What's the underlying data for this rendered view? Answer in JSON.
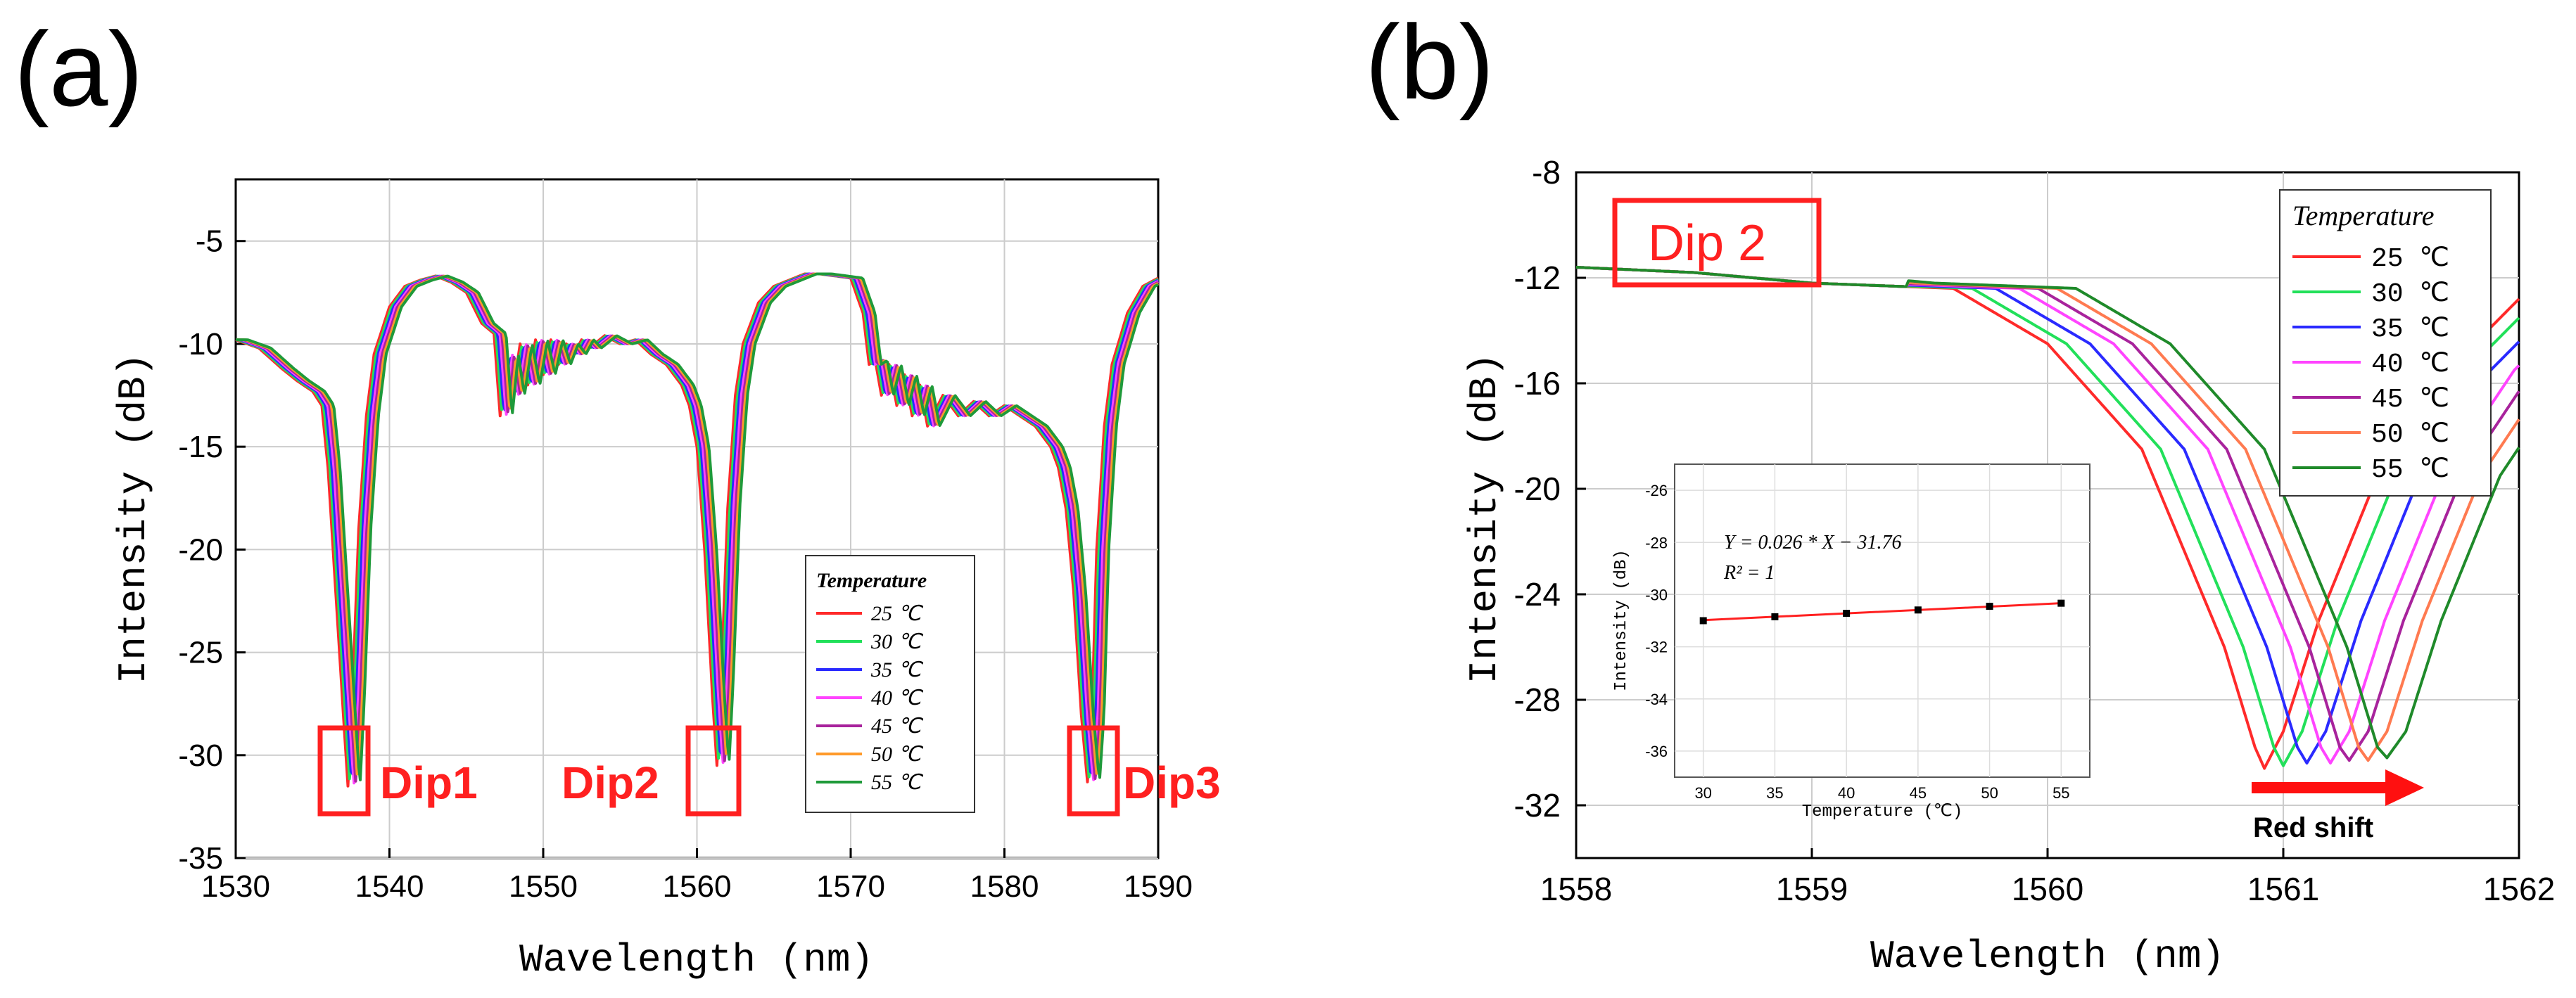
{
  "figure": {
    "panel_a_label": "(a)",
    "panel_b_label": "(b)"
  },
  "chart_data": [
    {
      "type": "line",
      "panel": "(a)",
      "xlabel": "Wavelength (nm)",
      "ylabel": "Intensity (dB)",
      "xlim": [
        1530,
        1590
      ],
      "ylim": [
        -35,
        -2
      ],
      "xticks": [
        1530,
        1540,
        1550,
        1560,
        1570,
        1580,
        1590
      ],
      "yticks": [
        -5,
        -10,
        -15,
        -20,
        -25,
        -30,
        -35
      ],
      "grid": true,
      "legend": {
        "title": "Temperature",
        "position": "lower-right",
        "entries": [
          "25 ℃",
          "30 ℃",
          "35 ℃",
          "40 ℃",
          "45 ℃",
          "50 ℃",
          "55 ℃"
        ]
      },
      "series": [
        {
          "name": "25 ℃",
          "color": "#ff2a2a",
          "shift": 0.0
        },
        {
          "name": "30 ℃",
          "color": "#22e05a",
          "shift": 0.13
        },
        {
          "name": "35 ℃",
          "color": "#2a2aff",
          "shift": 0.26
        },
        {
          "name": "40 ℃",
          "color": "#ff44ff",
          "shift": 0.39
        },
        {
          "name": "45 ℃",
          "color": "#a8239c",
          "shift": 0.52
        },
        {
          "name": "50 ℃",
          "color": "#ff9a2a",
          "shift": 0.65
        },
        {
          "name": "55 ℃",
          "color": "#1f9a3a",
          "shift": 0.78
        }
      ],
      "x": [
        1530,
        1531.5,
        1533,
        1534,
        1535,
        1535.6,
        1536,
        1536.5,
        1537,
        1537.3,
        1537.6,
        1538,
        1538.5,
        1539,
        1540,
        1541,
        1542,
        1543,
        1544,
        1545,
        1546,
        1546.8,
        1547.2,
        1547.6,
        1548,
        1548.5,
        1549,
        1549.5,
        1550,
        1550.5,
        1551,
        1551.5,
        1552,
        1552.5,
        1553,
        1554,
        1555,
        1556,
        1557,
        1558,
        1559,
        1559.5,
        1560,
        1560.5,
        1561,
        1561.3,
        1561.6,
        1562,
        1562.5,
        1563,
        1564,
        1565,
        1566,
        1567,
        1568,
        1569,
        1570,
        1570.8,
        1571.2,
        1571.6,
        1572,
        1572.5,
        1573,
        1573.5,
        1574,
        1574.5,
        1575,
        1576,
        1577,
        1578,
        1579,
        1580,
        1581,
        1582,
        1583,
        1583.5,
        1584,
        1584.5,
        1585,
        1585.4,
        1585.7,
        1586,
        1586.5,
        1587,
        1588,
        1589,
        1590
      ],
      "values": [
        -9.8,
        -10.2,
        -11.2,
        -11.8,
        -12.3,
        -13,
        -16,
        -22,
        -28,
        -31.5,
        -27,
        -19,
        -13.5,
        -10.5,
        -8.2,
        -7.2,
        -6.9,
        -6.7,
        -7,
        -7.5,
        -9,
        -9.5,
        -13.5,
        -10.5,
        -12.5,
        -10,
        -12,
        -9.8,
        -11.5,
        -9.8,
        -11,
        -10,
        -10.5,
        -9.8,
        -10.2,
        -9.6,
        -10,
        -9.8,
        -10.5,
        -11,
        -12,
        -13,
        -15,
        -20,
        -27,
        -30.5,
        -26,
        -18,
        -12.5,
        -10,
        -8,
        -7.2,
        -6.9,
        -6.6,
        -6.6,
        -6.7,
        -6.8,
        -8.5,
        -11,
        -10.8,
        -12.5,
        -11,
        -13,
        -11.5,
        -13.5,
        -12,
        -14,
        -12.5,
        -13.5,
        -12.8,
        -13.5,
        -13,
        -13.5,
        -14,
        -15,
        -16,
        -18,
        -22,
        -28,
        -31.3,
        -28,
        -20,
        -14,
        -11,
        -8.5,
        -7.2,
        -6.8
      ]
    },
    {
      "type": "line",
      "panel": "(b)",
      "xlabel": "Wavelength (nm)",
      "ylabel": "Intensity (dB)",
      "xlim": [
        1558,
        1562
      ],
      "ylim": [
        -34,
        -8
      ],
      "xticks": [
        1558,
        1559,
        1560,
        1561,
        1562
      ],
      "yticks": [
        -8,
        -12,
        -16,
        -20,
        -24,
        -28,
        -32
      ],
      "grid": true,
      "annotations": [
        {
          "text": "Dip 2"
        },
        {
          "text": "Red shift"
        }
      ],
      "legend": {
        "title": "Temperature",
        "position": "top-right",
        "entries": [
          "25 ℃",
          "30 ℃",
          "35 ℃",
          "40 ℃",
          "45 ℃",
          "50 ℃",
          "55 ℃"
        ]
      },
      "series": [
        {
          "name": "25 ℃",
          "color": "#ff2a2a",
          "dip_x": 1560.92,
          "dip_y": -30.6
        },
        {
          "name": "30 ℃",
          "color": "#22e05a",
          "dip_x": 1561.0,
          "dip_y": -30.5
        },
        {
          "name": "35 ℃",
          "color": "#2a2aff",
          "dip_x": 1561.1,
          "dip_y": -30.4
        },
        {
          "name": "40 ℃",
          "color": "#ff44ff",
          "dip_x": 1561.2,
          "dip_y": -30.4
        },
        {
          "name": "45 ℃",
          "color": "#a8239c",
          "dip_x": 1561.28,
          "dip_y": -30.3
        },
        {
          "name": "50 ℃",
          "color": "#ff7a50",
          "dip_x": 1561.36,
          "dip_y": -30.3
        },
        {
          "name": "55 ℃",
          "color": "#1f8a2a",
          "dip_x": 1561.44,
          "dip_y": -30.2
        }
      ],
      "inset": {
        "type": "scatter",
        "xlabel": "Temperature (℃)",
        "ylabel": "Intensity (dB)",
        "xlim": [
          28,
          57
        ],
        "ylim": [
          -37,
          -25
        ],
        "xticks": [
          30,
          35,
          40,
          45,
          50,
          55
        ],
        "yticks": [
          -26,
          -28,
          -30,
          -32,
          -34,
          -36
        ],
        "x": [
          30,
          35,
          40,
          45,
          50,
          55
        ],
        "y": [
          -31.0,
          -30.85,
          -30.72,
          -30.59,
          -30.45,
          -30.33
        ],
        "fit_equation": "Y = 0.026 * X − 31.76",
        "r_squared": "R² = 1",
        "fit": {
          "slope": 0.026,
          "intercept": -31.76
        }
      }
    }
  ]
}
